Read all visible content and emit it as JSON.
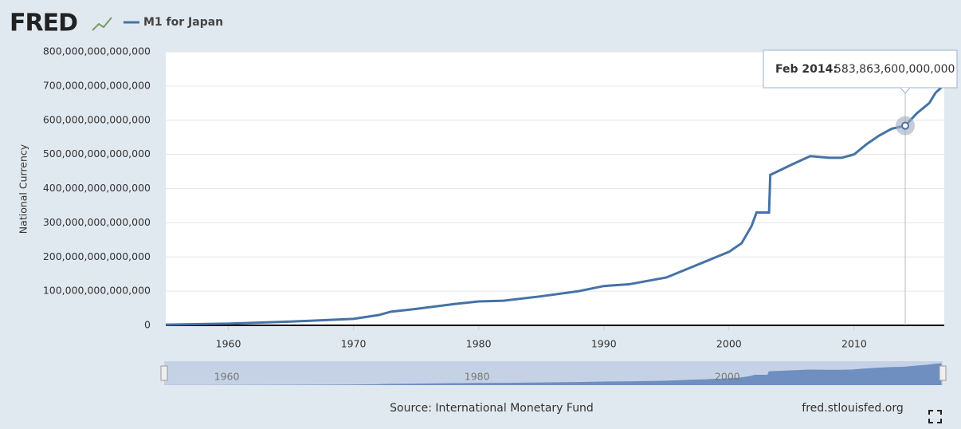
{
  "chart_data": {
    "type": "line",
    "logo": "FRED",
    "y_label": "National Currency",
    "source": "Source: International Monetary Fund",
    "site": "fred.stlouisfed.org",
    "x": [
      1955,
      1960,
      1965,
      1970,
      1972,
      1973,
      1975,
      1978,
      1980,
      1982,
      1985,
      1988,
      1990,
      1992,
      1995,
      1997,
      1998,
      2000,
      2001,
      2001.8,
      2002.2,
      2003.2,
      2003.3,
      2005,
      2006.5,
      2008,
      2009,
      2010,
      2011,
      2012,
      2013,
      2014.08,
      2015,
      2016,
      2016.5,
      2017.1
    ],
    "series": [
      {
        "name": "M1 for Japan",
        "color": "#4572a7",
        "values": [
          2000000000000,
          5000000000000,
          11000000000000,
          19000000000000,
          30000000000000,
          40000000000000,
          48000000000000,
          62000000000000,
          70000000000000,
          72000000000000,
          85000000000000,
          100000000000000,
          115000000000000,
          120000000000000,
          140000000000000,
          170000000000000,
          185000000000000,
          215000000000000,
          240000000000000,
          290000000000000,
          330000000000000,
          330000000000000,
          440000000000000,
          470000000000000,
          495000000000000,
          490000000000000,
          490000000000000,
          500000000000000,
          530000000000000,
          555000000000000,
          575000000000000,
          583863600000000,
          620000000000000,
          650000000000000,
          680000000000000,
          700000000000000
        ]
      }
    ],
    "xlim": [
      1955,
      2017.2
    ],
    "xticks": [
      1960,
      1970,
      1980,
      1990,
      2000,
      2010
    ],
    "ylim": [
      0,
      800000000000000
    ],
    "yticks": [
      0,
      {
        "value": 100000000000000,
        "label": "100,000,000,000,000"
      },
      {
        "value": 200000000000000,
        "label": "200,000,000,000,000"
      },
      {
        "value": 300000000000000,
        "label": "300,000,000,000,000"
      },
      {
        "value": 400000000000000,
        "label": "400,000,000,000,000"
      },
      {
        "value": 500000000000000,
        "label": "500,000,000,000,000"
      },
      {
        "value": 600000000000000,
        "label": "600,000,000,000,000"
      },
      {
        "value": 700000000000000,
        "label": "700,000,000,000,000"
      },
      {
        "value": 800000000000000,
        "label": "800,000,000,000,000"
      }
    ],
    "grid": true,
    "tooltip": {
      "label": "Feb 2014:",
      "x": 2014.08,
      "value": 583863600000000,
      "value_label": "583,863,600,000,000"
    },
    "navigator": {
      "xticks": [
        1960,
        1980,
        2000
      ]
    }
  }
}
